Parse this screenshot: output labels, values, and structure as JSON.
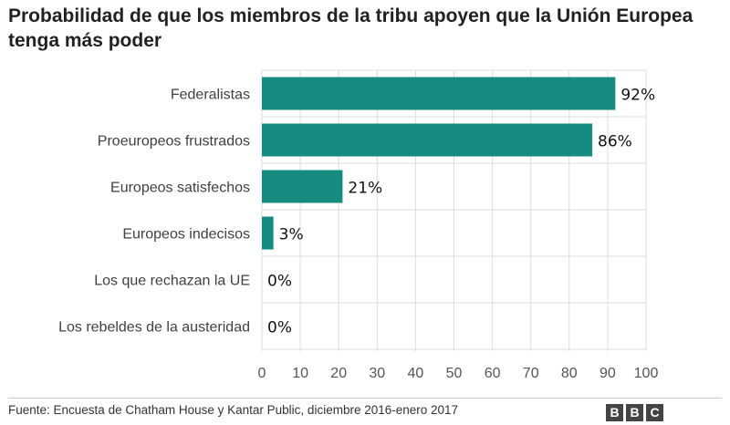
{
  "chart_data": {
    "type": "bar",
    "orientation": "horizontal",
    "title": "Probabilidad de que los miembros de la tribu apoyen que la Unión Europea tenga más poder",
    "categories": [
      "Federalistas",
      "Proeuropeos frustrados",
      "Europeos satisfechos",
      "Europeos indecisos",
      "Los que rechazan la UE",
      "Los rebeldes de la austeridad"
    ],
    "values": [
      92,
      86,
      21,
      3,
      0,
      0
    ],
    "value_labels": [
      "92%",
      "86%",
      "21%",
      "3%",
      "0%",
      "0%"
    ],
    "xlim": [
      0,
      100
    ],
    "xticks": [
      0,
      10,
      20,
      30,
      40,
      50,
      60,
      70,
      80,
      90,
      100
    ],
    "grid": true,
    "bar_color": "#168C80",
    "grid_color": "#dcdcdc"
  },
  "footer": {
    "source": "Fuente: Encuesta de Chatham House y Kantar Public, diciembre 2016-enero 2017",
    "logo_letters": [
      "B",
      "B",
      "C"
    ]
  }
}
